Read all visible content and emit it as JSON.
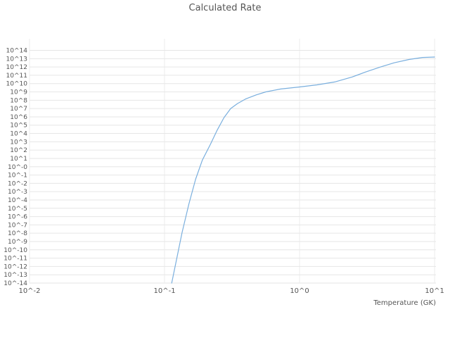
{
  "chart_data": {
    "type": "line",
    "title": "Calculated Rate",
    "xlabel": "Temperature (GK)",
    "ylabel": "",
    "x_scale": "log10",
    "y_scale": "log10",
    "grid": true,
    "legend": "none",
    "line_color": "#7aafde",
    "grid_color": "#e6e6e6",
    "vgrid_color": "#ededed",
    "tick_color": "#555555",
    "xlim": [
      -2,
      1.01
    ],
    "ylim": [
      -14,
      15.4
    ],
    "x_ticks": [
      {
        "label": "10^-2",
        "value": -2
      },
      {
        "label": "10^-1",
        "value": -1
      },
      {
        "label": "10^0",
        "value": 0
      },
      {
        "label": "10^1",
        "value": 1
      }
    ],
    "y_ticks": [
      {
        "label": "10^14",
        "value": 14
      },
      {
        "label": "10^13",
        "value": 13
      },
      {
        "label": "10^12",
        "value": 12
      },
      {
        "label": "10^11",
        "value": 11
      },
      {
        "label": "10^10",
        "value": 10
      },
      {
        "label": "10^9",
        "value": 9
      },
      {
        "label": "10^8",
        "value": 8
      },
      {
        "label": "10^7",
        "value": 7
      },
      {
        "label": "10^6",
        "value": 6
      },
      {
        "label": "10^5",
        "value": 5
      },
      {
        "label": "10^4",
        "value": 4
      },
      {
        "label": "10^3",
        "value": 3
      },
      {
        "label": "10^2",
        "value": 2
      },
      {
        "label": "10^1",
        "value": 1
      },
      {
        "label": "10^-0",
        "value": 0
      },
      {
        "label": "10^-1",
        "value": -1
      },
      {
        "label": "10^-2",
        "value": -2
      },
      {
        "label": "10^-3",
        "value": -3
      },
      {
        "label": "10^-4",
        "value": -4
      },
      {
        "label": "10^-5",
        "value": -5
      },
      {
        "label": "10^-6",
        "value": -6
      },
      {
        "label": "10^-7",
        "value": -7
      },
      {
        "label": "10^-8",
        "value": -8
      },
      {
        "label": "10^-9",
        "value": -9
      },
      {
        "label": "10^-10",
        "value": -10
      },
      {
        "label": "10^-11",
        "value": -11
      },
      {
        "label": "10^-12",
        "value": -12
      },
      {
        "label": "10^-13",
        "value": -13
      },
      {
        "label": "10^-14",
        "value": -14
      }
    ],
    "series": [
      {
        "name": "calculated-rate",
        "log10_x": [
          -0.947,
          -0.87,
          -0.82,
          -0.77,
          -0.72,
          -0.66,
          -0.61,
          -0.56,
          -0.51,
          -0.46,
          -0.4,
          -0.32,
          -0.25,
          -0.14,
          0.0,
          0.13,
          0.26,
          0.39,
          0.49,
          0.6,
          0.7,
          0.81,
          0.91,
          1.0
        ],
        "log10_y": [
          -14.0,
          -7.9,
          -4.5,
          -1.5,
          0.8,
          2.7,
          4.4,
          5.9,
          7.0,
          7.6,
          8.15,
          8.65,
          9.0,
          9.35,
          9.6,
          9.85,
          10.2,
          10.8,
          11.4,
          12.0,
          12.5,
          12.9,
          13.15,
          13.2
        ]
      }
    ]
  }
}
